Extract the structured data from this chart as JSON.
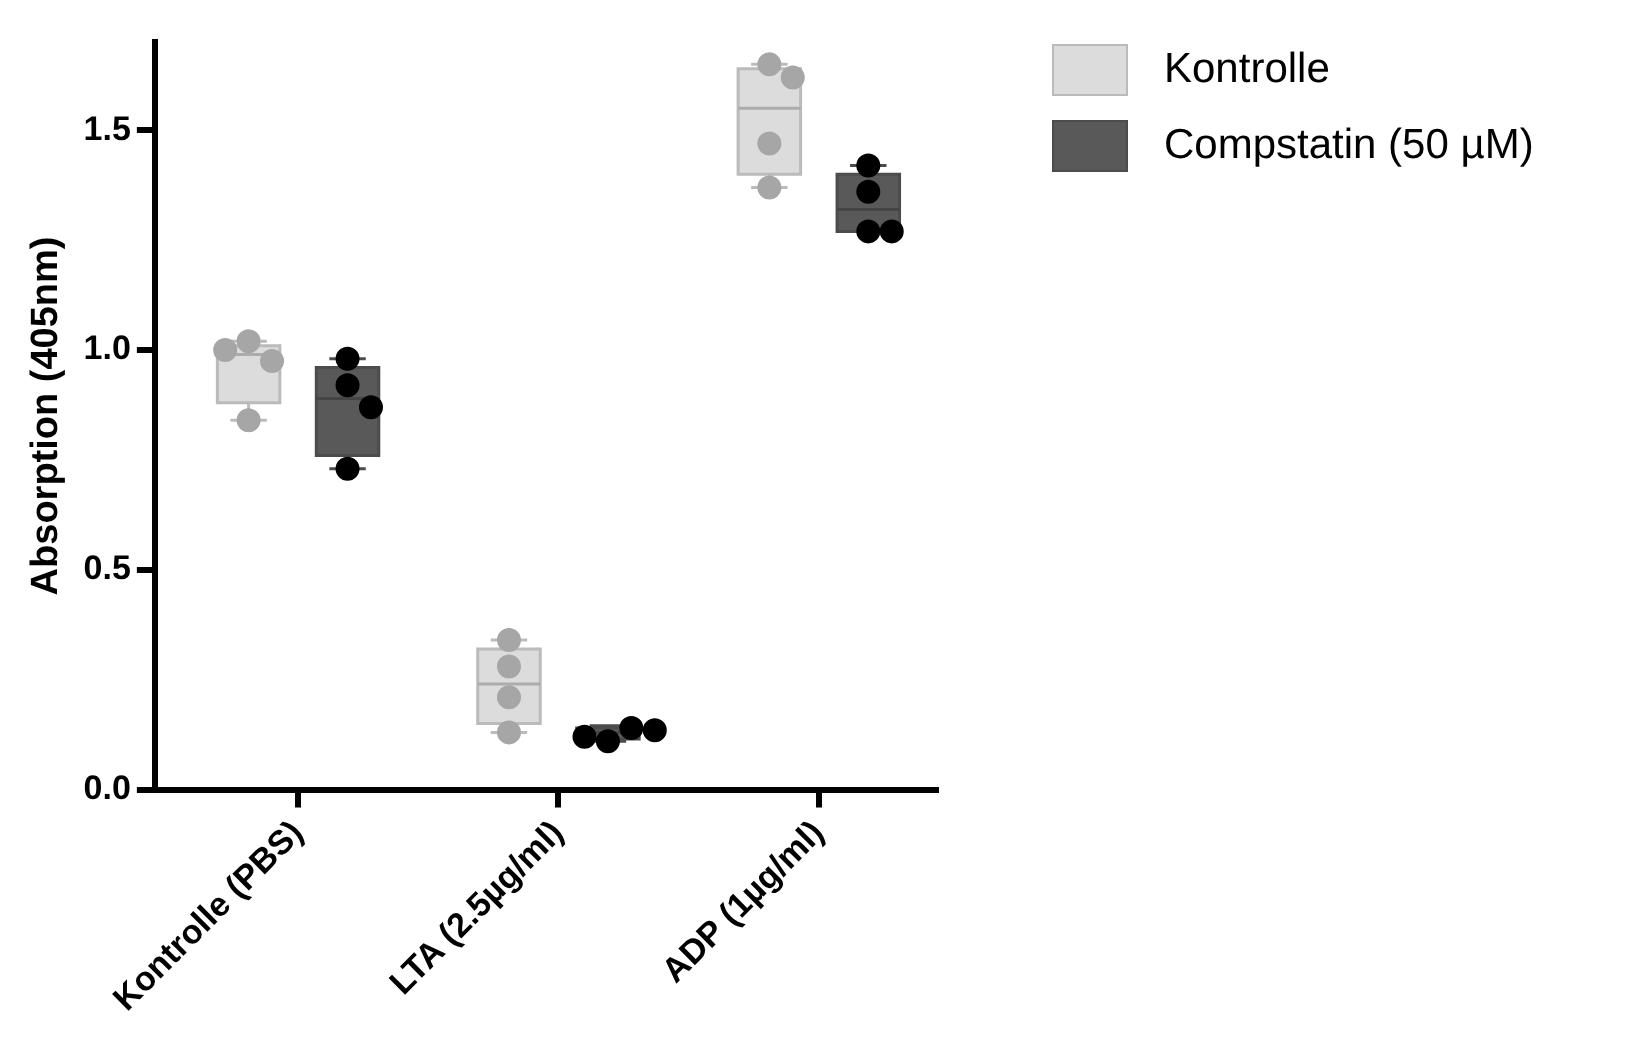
{
  "chart_data": {
    "type": "box",
    "ylabel": "Absorption (405nm)",
    "categories": [
      "Kontrolle (PBS)",
      "LTA (2.5µg/ml)",
      "ADP (1µg/ml)"
    ],
    "ylim": [
      0,
      1.7
    ],
    "yticks": [
      {
        "value": 0,
        "label": "0.0"
      },
      {
        "value": 0.5,
        "label": "0.5"
      },
      {
        "value": 1,
        "label": "1.0"
      },
      {
        "value": 1.5,
        "label": "1.5"
      }
    ],
    "legend": "top right",
    "series": [
      {
        "name": "Kontrolle",
        "type": "box",
        "color": "#dcdcdc",
        "boxes": [
          {
            "low": 0.84,
            "q1": 0.88,
            "median": 0.99,
            "q3": 1.01,
            "high": 1.02
          },
          {
            "low": 0.13,
            "q1": 0.15,
            "median": 0.24,
            "q3": 0.32,
            "high": 0.34
          },
          {
            "low": 1.37,
            "q1": 1.4,
            "median": 1.55,
            "q3": 1.64,
            "high": 1.65
          }
        ]
      },
      {
        "name": "Compstatin (50 µM)",
        "type": "box",
        "color": "#595959",
        "boxes": [
          {
            "low": 0.73,
            "q1": 0.76,
            "median": 0.89,
            "q3": 0.96,
            "high": 0.98
          },
          {
            "low": 0.11,
            "q1": 0.115,
            "median": 0.13,
            "q3": 0.14,
            "high": 0.145
          },
          {
            "low": 1.27,
            "q1": 1.27,
            "median": 1.32,
            "q3": 1.4,
            "high": 1.42
          }
        ]
      },
      {
        "type": "scatter",
        "color": "#a6a6a6",
        "x": [
          "Kontrolle (PBS)",
          "Kontrolle (PBS)",
          "Kontrolle (PBS)",
          "Kontrolle (PBS)",
          "LTA (2.5µg/ml)",
          "LTA (2.5µg/ml)",
          "LTA (2.5µg/ml)",
          "LTA (2.5µg/ml)",
          "ADP (1µg/ml)",
          "ADP (1µg/ml)",
          "ADP (1µg/ml)",
          "ADP (1µg/ml)"
        ],
        "values": [
          1.02,
          0.975,
          1.0,
          0.84,
          0.34,
          0.28,
          0.21,
          0.13,
          1.65,
          1.62,
          1.47,
          1.37
        ]
      },
      {
        "type": "scatter",
        "color": "#000000",
        "x": [
          "Kontrolle (PBS)",
          "Kontrolle (PBS)",
          "Kontrolle (PBS)",
          "Kontrolle (PBS)",
          "LTA (2.5µg/ml)",
          "LTA (2.5µg/ml)",
          "LTA (2.5µg/ml)",
          "LTA (2.5µg/ml)",
          "ADP (1µg/ml)",
          "ADP (1µg/ml)",
          "ADP (1µg/ml)",
          "ADP (1µg/ml)"
        ],
        "values": [
          0.98,
          0.92,
          0.87,
          0.73,
          0.11,
          0.14,
          0.12,
          0.135,
          1.42,
          1.36,
          1.27,
          1.27
        ]
      }
    ]
  }
}
